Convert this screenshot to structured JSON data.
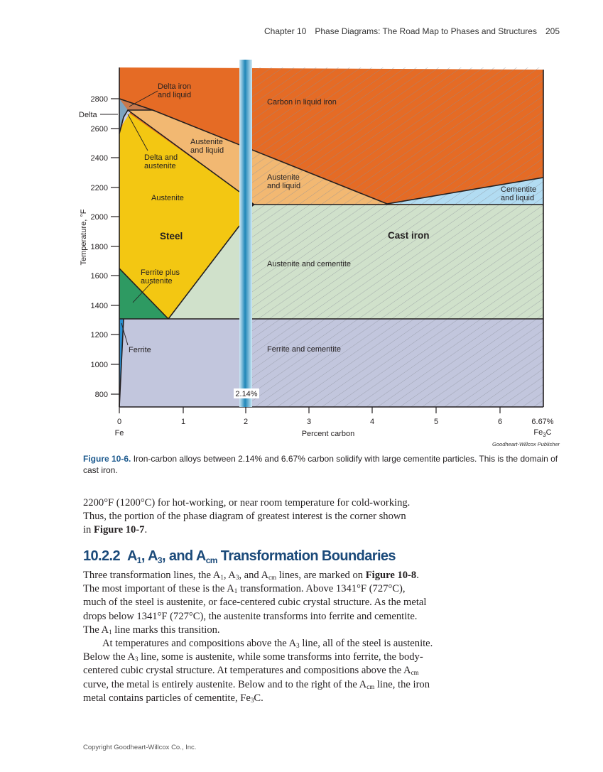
{
  "header": {
    "chapter": "Chapter 10",
    "title": "Phase Diagrams: The Road Map to Phases and Structures",
    "page": "205"
  },
  "figure": {
    "y_axis_label": "Temperature, °F",
    "y_ticks": [
      "2800",
      "2600",
      "2400",
      "2200",
      "2000",
      "1800",
      "1600",
      "1400",
      "1200",
      "1000",
      "800"
    ],
    "x_ticks": [
      "0",
      "1",
      "2",
      "3",
      "4",
      "5",
      "6",
      "6.67%"
    ],
    "x_axis_label": "Percent carbon",
    "x_left_label": "Fe",
    "x_right_label": {
      "base": "Fe",
      "sub": "3",
      "tail": "C"
    },
    "divider_label": "2.14%",
    "regions": {
      "delta_iron_liquid": [
        "Delta iron",
        "and liquid"
      ],
      "delta": "Delta",
      "delta_austenite": [
        "Delta and",
        "austenite"
      ],
      "austenite_liquid_left": [
        "Austenite",
        "and liquid"
      ],
      "austenite": "Austenite",
      "steel": "Steel",
      "ferrite_austenite": [
        "Ferrite plus",
        "austenite"
      ],
      "ferrite": "Ferrite",
      "carbon_liquid": "Carbon in liquid iron",
      "austenite_liquid_right": [
        "Austenite",
        "and liquid"
      ],
      "cementite_liquid": [
        "Cementite",
        "and liquid"
      ],
      "cast_iron": "Cast iron",
      "austenite_cementite": "Austenite and cementite",
      "ferrite_cementite": "Ferrite and cementite"
    },
    "colors": {
      "liquid": "#e56b25",
      "austenite_liquid": "#f2b872",
      "austenite": "#f3c712",
      "ferrite_austenite": "#2e9a62",
      "austenite_cementite": "#d0e1cb",
      "ferrite_cementite": "#c2c6dd",
      "cementite_liquid": "#b2dcf2",
      "delta": "#7da4c0",
      "divider": "#2a8fbf"
    },
    "credit": "Goodheart-Willcox Publisher",
    "caption_label": "Figure 10-6.",
    "caption_text": "Iron-carbon alloys between 2.14% and 6.67% carbon solidify with large cementite particles. This is the domain of cast iron."
  },
  "intro_lines": [
    [
      {
        "t": "2200°F (1200°C) for hot-working, or near room temperature for cold-working."
      }
    ],
    [
      {
        "t": "Thus, the portion of the phase diagram of greatest interest is the corner shown"
      }
    ],
    [
      {
        "t": "in "
      },
      {
        "t": "Figure 10-7",
        "b": true
      },
      {
        "t": "."
      }
    ]
  ],
  "section": {
    "number": "10.2.2",
    "title_parts": [
      {
        "t": "A"
      },
      {
        "t": "1",
        "sub": true
      },
      {
        "t": ", A"
      },
      {
        "t": "3",
        "sub": true
      },
      {
        "t": ", and A"
      },
      {
        "t": "cm",
        "sub": true
      },
      {
        "t": " Transformation Boundaries"
      }
    ]
  },
  "body_lines": [
    [
      {
        "t": "Three transformation lines, the A"
      },
      {
        "t": "1",
        "sub": true
      },
      {
        "t": ", A"
      },
      {
        "t": "3",
        "sub": true
      },
      {
        "t": ", and A"
      },
      {
        "t": "cm",
        "sub": true
      },
      {
        "t": " lines, are marked on "
      },
      {
        "t": "Figure 10-8",
        "b": true
      },
      {
        "t": "."
      }
    ],
    [
      {
        "t": "The most important of these is the A"
      },
      {
        "t": "1",
        "sub": true
      },
      {
        "t": " transformation. Above 1341°F (727°C),"
      }
    ],
    [
      {
        "t": "much of the steel is austenite, or face-centered cubic crystal structure. As the metal"
      }
    ],
    [
      {
        "t": "drops below 1341°F (727°C), the austenite transforms into ferrite and cementite."
      }
    ],
    [
      {
        "t": "The A"
      },
      {
        "t": "1",
        "sub": true
      },
      {
        "t": " line marks this transition."
      }
    ],
    [
      {
        "t": "At temperatures and compositions above the A"
      },
      {
        "t": "3",
        "sub": true
      },
      {
        "t": " line, all of the steel is austenite."
      }
    ],
    [
      {
        "t": "Below the A"
      },
      {
        "t": "3",
        "sub": true
      },
      {
        "t": " line, some is austenite, while some transforms into ferrite, the body-"
      }
    ],
    [
      {
        "t": "centered cubic crystal structure. At temperatures and compositions above the A"
      },
      {
        "t": "cm",
        "sub": true
      }
    ],
    [
      {
        "t": "curve, the metal is entirely austenite. Below and to the right of the A"
      },
      {
        "t": "cm",
        "sub": true
      },
      {
        "t": " line, the iron"
      }
    ],
    [
      {
        "t": "metal contains particles of cementite, Fe"
      },
      {
        "t": "3",
        "sub": true
      },
      {
        "t": "C."
      }
    ]
  ],
  "footer": "Copyright Goodheart-Willcox Co., Inc."
}
